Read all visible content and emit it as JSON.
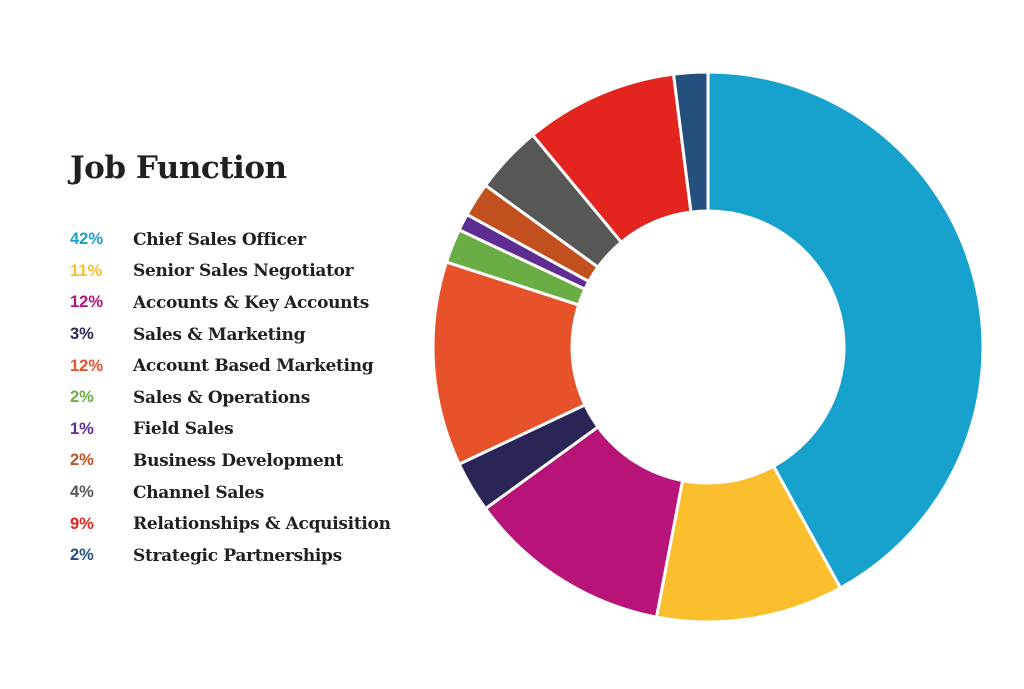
{
  "chart_data": {
    "type": "pie",
    "variant": "donut",
    "title": "Job Function",
    "legend_position": "left",
    "slices": [
      {
        "label": "Chief Sales Officer",
        "pct_label": "42%",
        "value": 42,
        "color": "#17a2cd"
      },
      {
        "label": "Senior Sales Negotiator",
        "pct_label": "11%",
        "value": 11,
        "color": "#fbbf2d"
      },
      {
        "label": "Accounts & Key Accounts",
        "pct_label": "12%",
        "value": 12,
        "color": "#b81378"
      },
      {
        "label": "Sales & Marketing",
        "pct_label": "3%",
        "value": 3,
        "color": "#2a2557"
      },
      {
        "label": "Account Based Marketing",
        "pct_label": "12%",
        "value": 12,
        "color": "#e7522b"
      },
      {
        "label": "Sales & Operations",
        "pct_label": "2%",
        "value": 2,
        "color": "#6aad45"
      },
      {
        "label": "Field Sales",
        "pct_label": "1%",
        "value": 1,
        "color": "#5e2d91"
      },
      {
        "label": "Business Development",
        "pct_label": "2%",
        "value": 2,
        "color": "#c2501e"
      },
      {
        "label": "Channel Sales",
        "pct_label": "4%",
        "value": 4,
        "color": "#575756"
      },
      {
        "label": "Relationships & Acquisition",
        "pct_label": "9%",
        "value": 9,
        "color": "#e3241f"
      },
      {
        "label": "Strategic Partnerships",
        "pct_label": "2%",
        "value": 2,
        "color": "#25507d"
      }
    ]
  }
}
